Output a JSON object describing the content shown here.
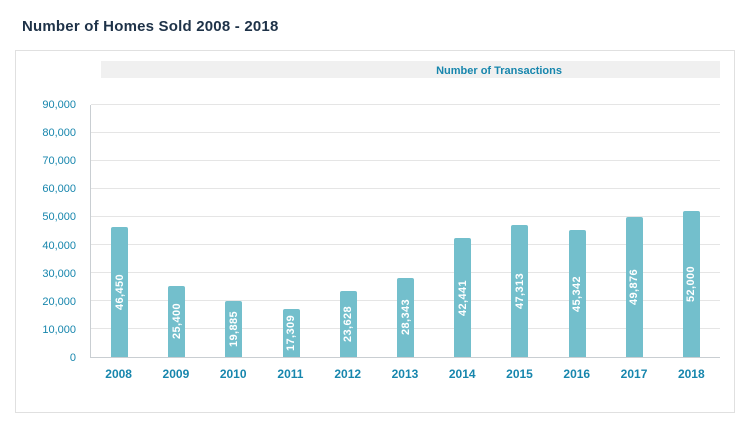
{
  "page": {
    "title": "Number of Homes Sold 2008 - 2018"
  },
  "legend": {
    "label": "Number of Transactions"
  },
  "colors": {
    "bar": "#73bfcc",
    "axis_text": "#1786ad",
    "title_text": "#1e3248",
    "bar_label_text": "#ffffff",
    "legend_strip_bg": "#f0f0f0"
  },
  "chart_data": {
    "type": "bar",
    "title": "Number of Homes Sold 2008 - 2018",
    "legend": "Number of Transactions",
    "categories": [
      "2008",
      "2009",
      "2010",
      "2011",
      "2012",
      "2013",
      "2014",
      "2015",
      "2016",
      "2017",
      "2018"
    ],
    "values": [
      46450,
      25400,
      19885,
      17309,
      23628,
      28343,
      42441,
      47313,
      45342,
      49876,
      52000
    ],
    "value_labels": [
      "46,450",
      "25,400",
      "19,885",
      "17,309",
      "23,628",
      "28,343",
      "42,441",
      "47,313",
      "45,342",
      "49,876",
      "52,000"
    ],
    "xlabel": "",
    "ylabel": "",
    "ylim": [
      0,
      90000
    ],
    "ytick_step": 10000,
    "yticks": [
      0,
      10000,
      20000,
      30000,
      40000,
      50000,
      60000,
      70000,
      80000,
      90000
    ],
    "ytick_labels": [
      "0",
      "10,000",
      "20,000",
      "30,000",
      "40,000",
      "50,000",
      "60,000",
      "70,000",
      "80,000",
      "90,000"
    ],
    "grid": true,
    "legend_position": "top-right"
  }
}
